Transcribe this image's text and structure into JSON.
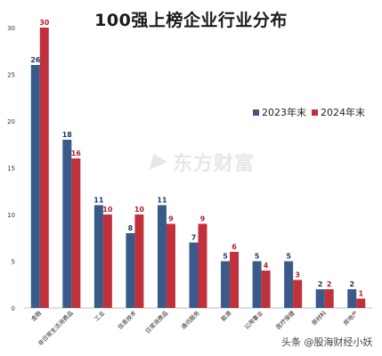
{
  "chart_data": {
    "type": "bar",
    "title": "100强上榜企业行业分布",
    "categories": [
      "金融",
      "非日常生活消费品",
      "工业",
      "信息技术",
      "日常消费品",
      "通讯服务",
      "能源",
      "公用事业",
      "医疗保健",
      "原材料",
      "房地产"
    ],
    "series": [
      {
        "name": "2023年末",
        "color": "#3a5a8a",
        "values": [
          26,
          18,
          11,
          8,
          11,
          7,
          5,
          5,
          5,
          2,
          2
        ]
      },
      {
        "name": "2024年末",
        "color": "#c0313c",
        "values": [
          30,
          16,
          10,
          10,
          9,
          9,
          6,
          4,
          3,
          2,
          1
        ]
      }
    ],
    "ylim": [
      0,
      30
    ],
    "yticks": [
      0,
      5,
      10,
      15,
      20,
      25,
      30
    ],
    "grid": false,
    "legend_position": "right"
  },
  "watermark": {
    "text": "东方财富"
  },
  "footer": {
    "credit": "头条 @股海财经小妖"
  }
}
